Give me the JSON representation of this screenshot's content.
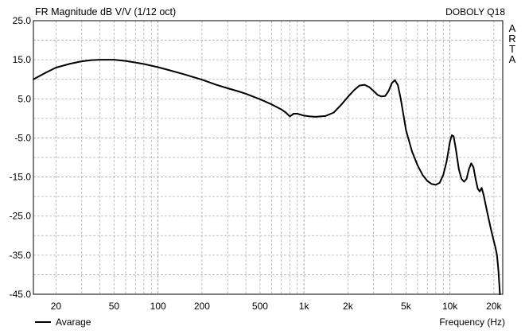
{
  "chart_data": {
    "type": "line",
    "title": "FR Magnitude dB V/V (1/12 oct)",
    "device": "DOBOLY Q18",
    "watermark_letters": [
      "A",
      "R",
      "T",
      "A"
    ],
    "xlabel": "Frequency (Hz)",
    "ylabel": "",
    "x_scale": "log",
    "xlim": [
      14,
      23000
    ],
    "ylim": [
      -45,
      25
    ],
    "y_ticks": [
      25,
      15,
      5,
      -5,
      -15,
      -25,
      -35,
      -45
    ],
    "y_tick_labels": [
      "25.0",
      "15.0",
      "5.0",
      "-5.0",
      "-15.0",
      "-25.0",
      "-35.0",
      "-45.0"
    ],
    "x_ticks": [
      20,
      50,
      100,
      200,
      500,
      1000,
      2000,
      5000,
      10000,
      20000
    ],
    "x_tick_labels": [
      "20",
      "50",
      "100",
      "200",
      "500",
      "1k",
      "2k",
      "5k",
      "10k",
      "20k"
    ],
    "grid": true,
    "legend_position": "bottom-left",
    "series": [
      {
        "name": "Avarage",
        "color": "#000000",
        "points": [
          [
            14,
            10.0
          ],
          [
            17,
            11.7
          ],
          [
            20,
            13.0
          ],
          [
            25,
            14.0
          ],
          [
            30,
            14.6
          ],
          [
            35,
            14.9
          ],
          [
            40,
            15.0
          ],
          [
            50,
            15.0
          ],
          [
            60,
            14.7
          ],
          [
            70,
            14.3
          ],
          [
            80,
            13.9
          ],
          [
            100,
            13.1
          ],
          [
            120,
            12.3
          ],
          [
            150,
            11.3
          ],
          [
            200,
            9.9
          ],
          [
            250,
            8.6
          ],
          [
            300,
            7.7
          ],
          [
            350,
            7.0
          ],
          [
            400,
            6.3
          ],
          [
            500,
            4.9
          ],
          [
            600,
            3.6
          ],
          [
            700,
            2.3
          ],
          [
            750,
            1.5
          ],
          [
            800,
            0.5
          ],
          [
            850,
            1.2
          ],
          [
            900,
            1.2
          ],
          [
            1000,
            0.7
          ],
          [
            1100,
            0.5
          ],
          [
            1200,
            0.4
          ],
          [
            1400,
            0.6
          ],
          [
            1600,
            1.5
          ],
          [
            1800,
            3.5
          ],
          [
            2000,
            5.5
          ],
          [
            2200,
            7.2
          ],
          [
            2400,
            8.4
          ],
          [
            2600,
            8.6
          ],
          [
            2800,
            8.0
          ],
          [
            3000,
            7.0
          ],
          [
            3200,
            6.0
          ],
          [
            3400,
            5.6
          ],
          [
            3600,
            5.7
          ],
          [
            3800,
            7.0
          ],
          [
            4000,
            9.0
          ],
          [
            4200,
            9.8
          ],
          [
            4400,
            8.5
          ],
          [
            4600,
            5.0
          ],
          [
            5000,
            -3.0
          ],
          [
            5500,
            -8.5
          ],
          [
            6000,
            -12.0
          ],
          [
            6500,
            -14.5
          ],
          [
            7000,
            -16.0
          ],
          [
            7500,
            -16.8
          ],
          [
            8000,
            -17.0
          ],
          [
            8500,
            -16.5
          ],
          [
            9000,
            -14.5
          ],
          [
            9500,
            -11.0
          ],
          [
            10000,
            -6.0
          ],
          [
            10300,
            -4.3
          ],
          [
            10600,
            -4.6
          ],
          [
            11000,
            -8.0
          ],
          [
            11500,
            -13.0
          ],
          [
            12000,
            -15.5
          ],
          [
            12500,
            -16.2
          ],
          [
            13000,
            -15.5
          ],
          [
            13500,
            -13.0
          ],
          [
            14000,
            -11.5
          ],
          [
            14500,
            -12.5
          ],
          [
            15000,
            -15.5
          ],
          [
            15500,
            -18.0
          ],
          [
            16000,
            -18.7
          ],
          [
            16500,
            -17.8
          ],
          [
            17000,
            -19.5
          ],
          [
            18000,
            -24.0
          ],
          [
            19000,
            -28.0
          ],
          [
            20000,
            -31.5
          ],
          [
            20500,
            -33.0
          ],
          [
            21000,
            -35.0
          ],
          [
            21500,
            -39.0
          ],
          [
            22000,
            -45.0
          ]
        ]
      }
    ]
  }
}
